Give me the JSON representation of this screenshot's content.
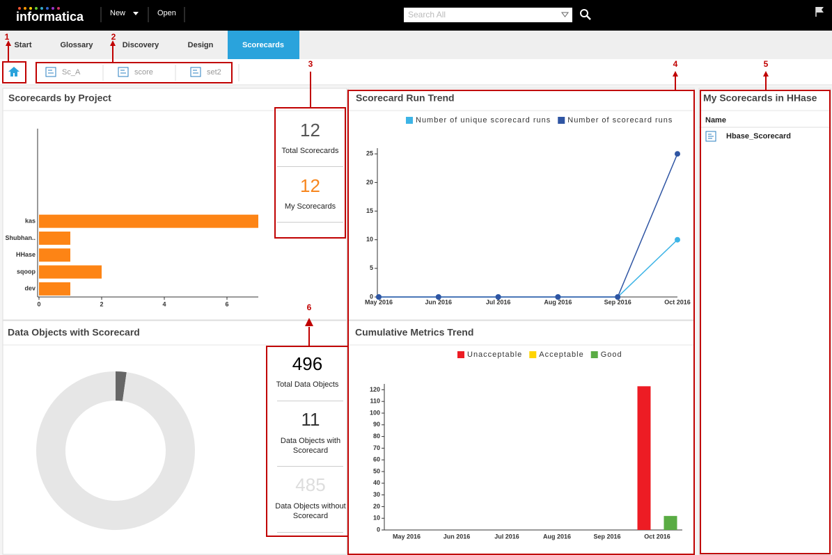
{
  "header": {
    "logo": "informatica",
    "menu": [
      "New",
      "Open"
    ],
    "search_placeholder": "Search All"
  },
  "tabs": [
    "Start",
    "Glossary",
    "Discovery",
    "Design",
    "Scorecards"
  ],
  "active_tab": 4,
  "breadcrumbs": [
    "Sc_A",
    "score",
    "set2"
  ],
  "callouts": [
    "1",
    "2",
    "3",
    "4",
    "5",
    "6"
  ],
  "scorecards_summary": [
    {
      "value": 12,
      "label": "Total Scorecards"
    },
    {
      "value": 12,
      "label": "My Scorecards"
    }
  ],
  "data_objects_total": {
    "value": 496,
    "label": "Total Data Objects"
  },
  "my_scorecards": {
    "title": "My Scorecards in HHase",
    "column": "Name",
    "rows": [
      "Hbase_Scorecard"
    ]
  },
  "chart_data": [
    {
      "type": "hbar",
      "title": "Scorecards by Project",
      "categories": [
        "kas",
        "Shubhan..",
        "HHase",
        "sqoop",
        "dev"
      ],
      "values": [
        7,
        1,
        1,
        2,
        1
      ],
      "color": "#fd8415",
      "xlim": [
        0,
        7
      ],
      "xticks": [
        0,
        2,
        4,
        6
      ]
    },
    {
      "type": "line",
      "title": "Scorecard Run Trend",
      "categories": [
        "May 2016",
        "Jun 2016",
        "Jul 2016",
        "Aug 2016",
        "Sep 2016",
        "Oct 2016"
      ],
      "series": [
        {
          "name": "Number of unique scorecard runs",
          "color": "#3db4e6",
          "values": [
            0,
            0,
            0,
            0,
            0,
            10
          ]
        },
        {
          "name": "Number of scorecard runs",
          "color": "#2f55a3",
          "values": [
            0,
            0,
            0,
            0,
            0,
            25
          ]
        }
      ],
      "ylim": [
        0,
        26
      ],
      "yticks": [
        0,
        5,
        10,
        15,
        20,
        25
      ]
    },
    {
      "type": "pie",
      "title": "Data Objects with Scorecard",
      "categories": [
        "Data Objects with Scorecard",
        "Data Objects without Scorecard"
      ],
      "values": [
        11,
        485
      ],
      "colors": [
        "#666666",
        "#e6e6e6"
      ],
      "label_colors": [
        "#333333",
        "#dddddd"
      ]
    },
    {
      "type": "groupbar",
      "title": "Cumulative Metrics Trend",
      "categories": [
        "May 2016",
        "Jun 2016",
        "Jul 2016",
        "Aug 2016",
        "Sep 2016",
        "Oct 2016"
      ],
      "series": [
        {
          "name": "Unacceptable",
          "color": "#ed1c24",
          "values": [
            0,
            0,
            0,
            0,
            0,
            123
          ]
        },
        {
          "name": "Acceptable",
          "color": "#ffd400",
          "values": [
            0,
            0,
            0,
            0,
            0,
            0
          ]
        },
        {
          "name": "Good",
          "color": "#5aac44",
          "values": [
            0,
            0,
            0,
            0,
            0,
            12
          ]
        }
      ],
      "ylim": [
        0,
        125
      ],
      "yticks": [
        0,
        10,
        20,
        30,
        40,
        50,
        60,
        70,
        80,
        90,
        100,
        110,
        120
      ]
    }
  ]
}
